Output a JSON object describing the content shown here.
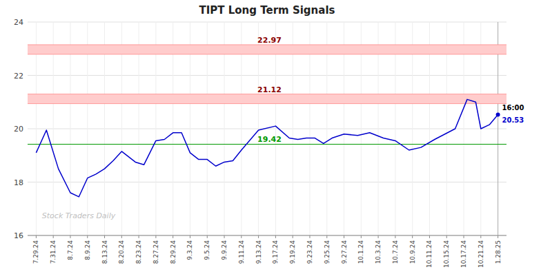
{
  "chart_data": {
    "type": "line",
    "title": "TIPT Long Term Signals",
    "x": [
      0,
      0.6,
      1.3,
      2.0,
      2.5,
      3.0,
      3.5,
      4.0,
      4.5,
      5.0,
      5.8,
      6.3,
      7.0,
      7.5,
      8.0,
      8.5,
      9.0,
      9.5,
      10.0,
      10.5,
      11.0,
      11.5,
      12.0,
      13.0,
      14.0,
      14.8,
      15.3,
      15.8,
      16.3,
      16.8,
      17.3,
      18.0,
      18.8,
      19.5,
      20.3,
      21.0,
      21.8,
      22.5,
      23.3,
      24.5,
      25.2,
      25.7,
      26.0,
      26.5,
      27.0
    ],
    "values": [
      19.1,
      19.95,
      18.5,
      17.6,
      17.45,
      18.15,
      18.3,
      18.5,
      18.8,
      19.15,
      18.75,
      18.65,
      19.55,
      19.6,
      19.85,
      19.85,
      19.1,
      18.85,
      18.85,
      18.6,
      18.75,
      18.8,
      19.2,
      19.95,
      20.1,
      19.65,
      19.6,
      19.65,
      19.65,
      19.45,
      19.65,
      19.8,
      19.75,
      19.85,
      19.65,
      19.55,
      19.2,
      19.3,
      19.6,
      20.0,
      21.1,
      21.0,
      20.0,
      20.15,
      20.53
    ],
    "color": "#0000cc",
    "xlim": [
      -0.5,
      27.5
    ],
    "xticks": [
      {
        "value": 0,
        "label": "7.29.24"
      },
      {
        "value": 1,
        "label": "7.31.24"
      },
      {
        "value": 2,
        "label": "8.7.24"
      },
      {
        "value": 3,
        "label": "8.9.24"
      },
      {
        "value": 4,
        "label": "8.13.24"
      },
      {
        "value": 5,
        "label": "8.20.24"
      },
      {
        "value": 6,
        "label": "8.23.24"
      },
      {
        "value": 7,
        "label": "8.27.24"
      },
      {
        "value": 8,
        "label": "8.29.24"
      },
      {
        "value": 9,
        "label": "9.3.24"
      },
      {
        "value": 10,
        "label": "9.5.24"
      },
      {
        "value": 11,
        "label": "9.9.24"
      },
      {
        "value": 12,
        "label": "9.11.24"
      },
      {
        "value": 13,
        "label": "9.13.24"
      },
      {
        "value": 14,
        "label": "9.17.24"
      },
      {
        "value": 15,
        "label": "9.19.24"
      },
      {
        "value": 16,
        "label": "9.23.24"
      },
      {
        "value": 17,
        "label": "9.25.24"
      },
      {
        "value": 18,
        "label": "9.27.24"
      },
      {
        "value": 19,
        "label": "10.1.24"
      },
      {
        "value": 20,
        "label": "10.3.24"
      },
      {
        "value": 21,
        "label": "10.7.24"
      },
      {
        "value": 22,
        "label": "10.9.24"
      },
      {
        "value": 23,
        "label": "10.11.24"
      },
      {
        "value": 24,
        "label": "10.15.24"
      },
      {
        "value": 25,
        "label": "10.17.24"
      },
      {
        "value": 26,
        "label": "10.21.24"
      },
      {
        "value": 27,
        "label": "1.28.25"
      }
    ],
    "ylim": [
      16,
      24
    ],
    "yticks": [
      16,
      18,
      20,
      22,
      24
    ],
    "grid": true,
    "bands": [
      {
        "value": 22.97,
        "half_width": 0.18,
        "color": "#ffcccc",
        "edge_color": "#ff8888",
        "label_color": "#8b0000"
      },
      {
        "value": 21.12,
        "half_width": 0.18,
        "color": "#ffcccc",
        "edge_color": "#ff8888",
        "label_color": "#8b0000"
      }
    ],
    "reference_line": {
      "value": 19.42,
      "color": "#009900"
    },
    "last_label": {
      "time": "16:00",
      "price": 20.53,
      "time_color": "#000000",
      "price_color": "#0000cc"
    },
    "watermark": {
      "text": "Stock Traders Daily",
      "color": "#c0c0c0"
    }
  }
}
